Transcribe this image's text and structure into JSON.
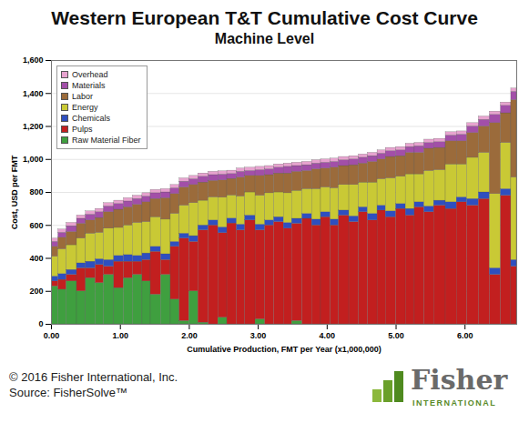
{
  "chart_data": {
    "type": "bar",
    "stacked": true,
    "title": "Western European T&T Cumulative Cost Curve",
    "subtitle": "Machine Level",
    "x_label": "Cumulative Production, FMT per Year (x1,000,000)",
    "y_label": "Cost, USD per FMT",
    "annotations": [
      "© 2016 Fisher International, Inc.",
      "Source: FisherSolve™",
      "Fisher",
      "INTERNATIONAL"
    ],
    "xlim": [
      0,
      6.75
    ],
    "xticks": [
      {
        "value": 0,
        "label": "0.00"
      },
      {
        "value": 1,
        "label": "1.00"
      },
      {
        "value": 2,
        "label": "2.00"
      },
      {
        "value": 3,
        "label": "3.00"
      },
      {
        "value": 4,
        "label": "4.00"
      },
      {
        "value": 5,
        "label": "5.00"
      },
      {
        "value": 6,
        "label": "6.00"
      }
    ],
    "ylim": [
      0,
      1600
    ],
    "yticks": [
      0,
      200,
      400,
      600,
      800,
      {
        "value": 1000,
        "label": "1,000"
      },
      {
        "value": 1200,
        "label": "1,200"
      },
      {
        "value": 1400,
        "label": "1,400"
      },
      {
        "value": 1600,
        "label": "1,600"
      }
    ],
    "grid": true,
    "legend": "top-left",
    "widths": [
      0.1,
      0.12,
      0.15,
      0.13,
      0.14,
      0.12,
      0.15,
      0.14,
      0.13,
      0.14,
      0.12,
      0.15,
      0.14,
      0.13,
      0.14,
      0.13,
      0.15,
      0.14,
      0.13,
      0.14,
      0.12,
      0.15,
      0.14,
      0.13,
      0.14,
      0.12,
      0.15,
      0.14,
      0.13,
      0.14,
      0.12,
      0.15,
      0.14,
      0.13,
      0.14,
      0.12,
      0.15,
      0.14,
      0.13,
      0.14,
      0.14,
      0.17,
      0.16,
      0.15,
      0.17,
      0.16,
      0.16,
      0.15,
      0.08
    ],
    "series": [
      {
        "name": "Raw Material Fiber",
        "color": "#3f9f3f",
        "values": [
          230,
          210,
          260,
          200,
          280,
          250,
          300,
          220,
          280,
          300,
          260,
          180,
          300,
          150,
          20,
          200,
          10,
          0,
          40,
          0,
          0,
          0,
          30,
          0,
          0,
          0,
          20,
          0,
          0,
          0,
          0,
          0,
          0,
          0,
          0,
          0,
          0,
          0,
          0,
          0,
          0,
          0,
          0,
          0,
          0,
          0,
          0,
          0,
          0
        ]
      },
      {
        "name": "Pulps",
        "color": "#c21f1f",
        "values": [
          30,
          60,
          40,
          140,
          60,
          110,
          50,
          160,
          100,
          80,
          130,
          260,
          90,
          320,
          500,
          300,
          560,
          600,
          513,
          612,
          570,
          630,
          540,
          600,
          620,
          580,
          590,
          640,
          600,
          650,
          600,
          660,
          620,
          680,
          630,
          690,
          650,
          700,
          660,
          710,
          680,
          720,
          700,
          740,
          720,
          760,
          300,
          780,
          350
        ]
      },
      {
        "name": "Chemicals",
        "color": "#2f4fbf",
        "values": [
          30,
          35,
          30,
          30,
          40,
          35,
          40,
          35,
          40,
          35,
          40,
          30,
          35,
          30,
          30,
          35,
          30,
          30,
          35,
          30,
          35,
          30,
          35,
          30,
          30,
          35,
          30,
          30,
          35,
          30,
          35,
          30,
          35,
          30,
          40,
          30,
          35,
          30,
          40,
          30,
          35,
          30,
          40,
          30,
          40,
          40,
          40,
          40,
          40
        ]
      },
      {
        "name": "Energy",
        "color": "#c9c935",
        "values": [
          120,
          150,
          150,
          150,
          170,
          160,
          190,
          170,
          180,
          200,
          190,
          180,
          210,
          170,
          170,
          200,
          150,
          140,
          180,
          140,
          170,
          140,
          175,
          165,
          150,
          180,
          170,
          150,
          185,
          150,
          190,
          155,
          190,
          150,
          190,
          160,
          200,
          165,
          210,
          170,
          215,
          185,
          230,
          200,
          250,
          240,
          450,
          280,
          500
        ]
      },
      {
        "name": "Labor",
        "color": "#9b6b3b",
        "values": [
          60,
          70,
          80,
          90,
          80,
          90,
          100,
          110,
          110,
          110,
          120,
          110,
          130,
          120,
          110,
          110,
          110,
          100,
          105,
          100,
          115,
          100,
          120,
          110,
          115,
          120,
          115,
          110,
          120,
          115,
          125,
          115,
          120,
          115,
          125,
          120,
          130,
          125,
          130,
          130,
          135,
          135,
          140,
          140,
          150,
          160,
          430,
          180,
          470
        ]
      },
      {
        "name": "Materials",
        "color": "#a24fa8",
        "values": [
          30,
          30,
          35,
          30,
          35,
          35,
          35,
          35,
          35,
          35,
          35,
          35,
          35,
          35,
          35,
          35,
          35,
          35,
          35,
          30,
          35,
          30,
          35,
          35,
          35,
          40,
          35,
          35,
          35,
          35,
          35,
          35,
          35,
          35,
          35,
          35,
          35,
          35,
          35,
          40,
          35,
          35,
          35,
          40,
          40,
          40,
          50,
          45,
          50
        ]
      },
      {
        "name": "Overhead",
        "color": "#e7a3cf",
        "values": [
          20,
          20,
          20,
          20,
          20,
          20,
          20,
          20,
          20,
          20,
          20,
          20,
          20,
          20,
          20,
          20,
          20,
          20,
          20,
          20,
          20,
          20,
          20,
          20,
          20,
          20,
          20,
          20,
          20,
          20,
          20,
          20,
          20,
          20,
          20,
          20,
          20,
          20,
          20,
          20,
          20,
          20,
          20,
          20,
          20,
          20,
          20,
          20,
          20
        ]
      }
    ]
  }
}
